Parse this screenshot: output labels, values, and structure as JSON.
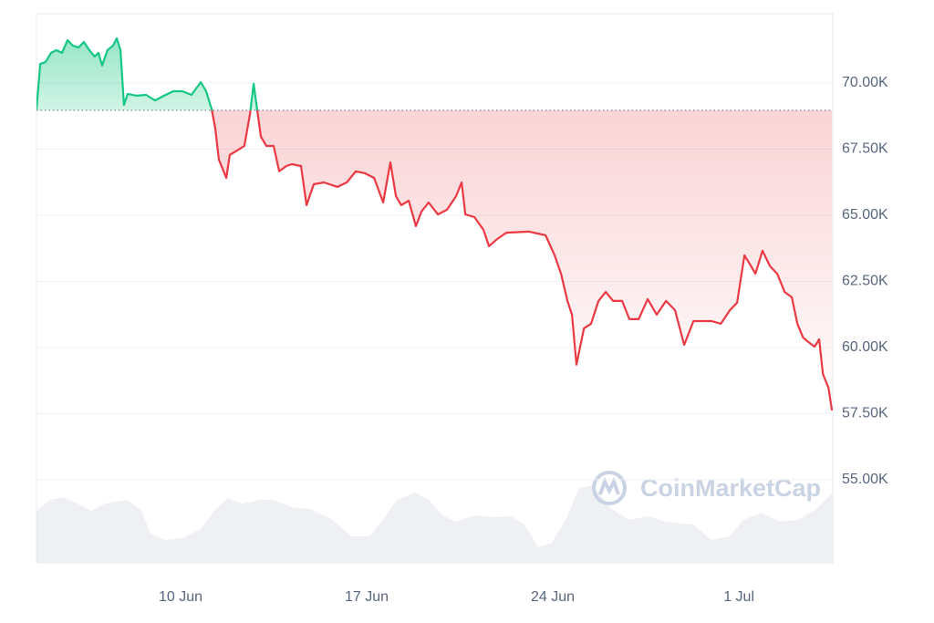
{
  "chart_data": {
    "type": "line",
    "watermark": "CoinMarketCap",
    "x": [
      4.58,
      4.72,
      4.92,
      5.13,
      5.33,
      5.54,
      5.75,
      5.95,
      6.16,
      6.36,
      6.57,
      6.77,
      6.91,
      7.05,
      7.25,
      7.46,
      7.6,
      7.74,
      7.87,
      8.01,
      8.35,
      8.7,
      9.04,
      9.38,
      9.73,
      10.07,
      10.41,
      10.76,
      10.96,
      11.17,
      11.3,
      11.44,
      11.72,
      11.85,
      12.13,
      12.4,
      12.61,
      12.75,
      12.88,
      13.02,
      13.23,
      13.5,
      13.71,
      13.98,
      14.19,
      14.53,
      14.74,
      15.01,
      15.39,
      15.9,
      16.25,
      16.59,
      16.93,
      17.28,
      17.62,
      17.89,
      18.1,
      18.3,
      18.58,
      18.85,
      19.06,
      19.33,
      19.68,
      20.02,
      20.36,
      20.57,
      20.71,
      21.05,
      21.39,
      21.6,
      21.91,
      22.25,
      23.11,
      23.73,
      24.07,
      24.31,
      24.55,
      24.72,
      24.89,
      25.17,
      25.44,
      25.72,
      25.99,
      26.27,
      26.61,
      26.88,
      27.23,
      27.57,
      27.91,
      28.26,
      28.6,
      28.94,
      29.29,
      29.97,
      30.32,
      30.66,
      30.93,
      31.21,
      31.42,
      31.62,
      31.89,
      32.17,
      32.44,
      32.72,
      32.99,
      33.2,
      33.41,
      33.61,
      33.85,
      34.02,
      34.16,
      34.37,
      34.5
    ],
    "values": [
      69000,
      70720,
      70790,
      71140,
      71240,
      71140,
      71620,
      71410,
      71340,
      71550,
      71240,
      71000,
      71140,
      70660,
      71240,
      71410,
      71690,
      71240,
      69170,
      69590,
      69520,
      69550,
      69340,
      69520,
      69690,
      69690,
      69550,
      70030,
      69690,
      69000,
      68310,
      67100,
      66410,
      67280,
      67450,
      67620,
      68830,
      69970,
      69000,
      67970,
      67620,
      67620,
      66660,
      66860,
      66930,
      66860,
      65380,
      66170,
      66240,
      66070,
      66240,
      66660,
      66590,
      66410,
      65480,
      67000,
      65720,
      65380,
      65550,
      64590,
      65140,
      65480,
      65030,
      65210,
      65720,
      66240,
      65030,
      64930,
      64450,
      63830,
      64100,
      64340,
      64380,
      64240,
      63480,
      62790,
      61760,
      61240,
      59350,
      60720,
      60900,
      61760,
      62100,
      61760,
      61760,
      61070,
      61070,
      61830,
      61240,
      61760,
      61410,
      60100,
      61000,
      61000,
      60900,
      61410,
      61690,
      63480,
      63140,
      62790,
      63660,
      63070,
      62790,
      62100,
      61900,
      60900,
      60380,
      60210,
      60030,
      60310,
      59000,
      58480,
      57620
    ],
    "baseline": 68970,
    "color_up": "#16c784",
    "color_down": "#ea3943",
    "xlim": [
      4.58,
      34.53
    ],
    "ylim": [
      51860,
      72620
    ],
    "xticks": [
      {
        "value": 10,
        "label": "10 Jun"
      },
      {
        "value": 17,
        "label": "17 Jun"
      },
      {
        "value": 24,
        "label": "24 Jun"
      },
      {
        "value": 31,
        "label": "1 Jul"
      }
    ],
    "yticks": [
      {
        "value": 55000,
        "label": "55.00K"
      },
      {
        "value": 57500,
        "label": "57.50K"
      },
      {
        "value": 60000,
        "label": "60.00K"
      },
      {
        "value": 62500,
        "label": "62.50K"
      },
      {
        "value": 65000,
        "label": "65.00K"
      },
      {
        "value": 67500,
        "label": "67.50K"
      },
      {
        "value": 70000,
        "label": "70.00K"
      }
    ],
    "grid": true
  }
}
